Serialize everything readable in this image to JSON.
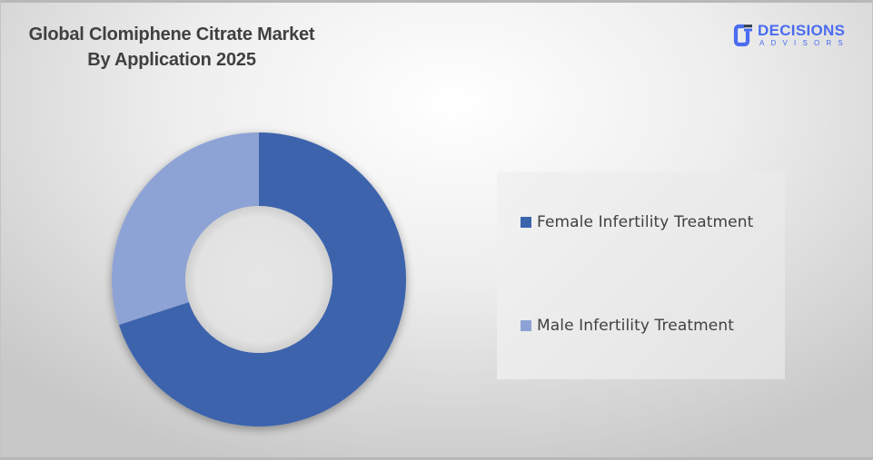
{
  "title": {
    "line1": "Global Clomiphene Citrate Market",
    "line2": "By Application 2025"
  },
  "logo": {
    "name": "DECISIONS",
    "tagline": "ADVISORS",
    "color": "#4a6cf0"
  },
  "legend": {
    "items": [
      {
        "label": "Female Infertility Treatment",
        "color": "#3c64ad"
      },
      {
        "label": "Male Infertility Treatment",
        "color": "#8ea3d5"
      }
    ]
  },
  "chart_data": {
    "type": "pie",
    "variant": "donut",
    "title": "Global Clomiphene Citrate Market By Application 2025",
    "categories": [
      "Female Infertility Treatment",
      "Male Infertility Treatment"
    ],
    "values": [
      70,
      30
    ],
    "unit": "% share (estimated from slice angles)",
    "colors": [
      "#3c64ad",
      "#8ea3d5"
    ],
    "start_angle": "12 o'clock, clockwise",
    "legend_position": "right",
    "data_labels": false
  }
}
